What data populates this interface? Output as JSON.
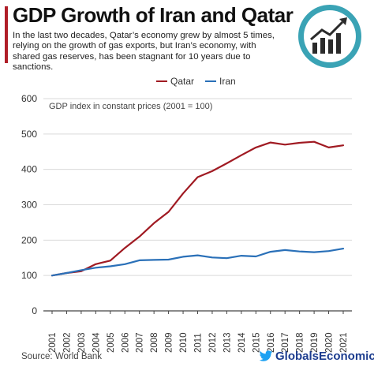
{
  "header": {
    "title": "GDP Growth of Iran and Qatar",
    "subtitle": "In the last two decades, Qatar’s economy grew by almost 5 times, relying on the growth of gas exports, but Iran’s economy, with shared gas reserves, has been stagnant for 10 years due to sanctions.",
    "badge_icon": "rising-bar-chart-icon"
  },
  "footer": {
    "source": "Source: World Bank",
    "brand": "GlobalsEconomic",
    "brand_icon": "twitter-bird-icon"
  },
  "colors": {
    "qatar": "#a01a22",
    "iran": "#2a70b8",
    "accent": "#b01e28",
    "badge": "#3aa3b5",
    "brand": "#1d3d8f"
  },
  "chart_data": {
    "type": "line",
    "annotation": "GDP index in constant prices (2001 = 100)",
    "x": [
      "2001",
      "2002",
      "2003",
      "2004",
      "2005",
      "2006",
      "2007",
      "2008",
      "2009",
      "2010",
      "2011",
      "2012",
      "2013",
      "2014",
      "2015",
      "2016",
      "2017",
      "2018",
      "2019",
      "2020",
      "2021"
    ],
    "series": [
      {
        "name": "Qatar",
        "color": "#a01a22",
        "values": [
          100,
          107,
          112,
          132,
          142,
          178,
          210,
          248,
          280,
          332,
          378,
          395,
          417,
          440,
          462,
          476,
          470,
          475,
          478,
          462,
          468
        ]
      },
      {
        "name": "Iran",
        "color": "#2a70b8",
        "values": [
          100,
          107,
          115,
          122,
          126,
          132,
          143,
          144,
          145,
          153,
          157,
          151,
          149,
          156,
          154,
          167,
          172,
          168,
          166,
          169,
          176
        ]
      }
    ],
    "ylim": [
      0,
      600
    ],
    "yticks": [
      0,
      100,
      200,
      300,
      400,
      500,
      600
    ],
    "grid": true,
    "legend": "top-center"
  }
}
